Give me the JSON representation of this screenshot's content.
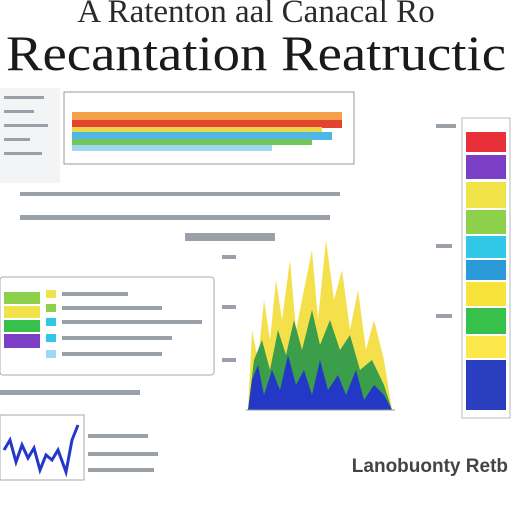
{
  "header": {
    "line1": "A Ratenton aal Canacal Ro",
    "line2": "Recantation Reatructic"
  },
  "footer": {
    "label": "Lanobuonty Retb"
  }
}
